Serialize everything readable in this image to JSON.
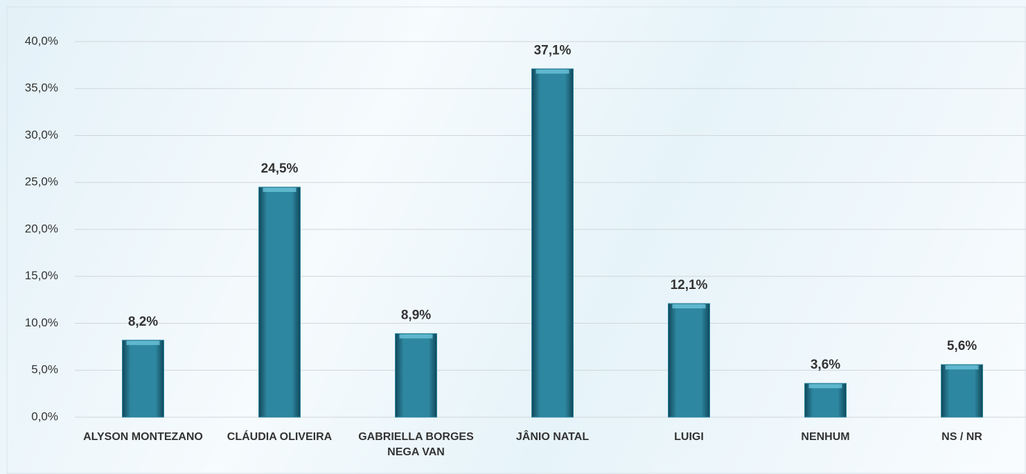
{
  "chart_data": {
    "type": "bar",
    "categories": [
      "ALYSON MONTEZANO",
      "CLÁUDIA OLIVEIRA",
      "GABRIELLA BORGES NEGA VAN",
      "JÂNIO NATAL",
      "LUIGI",
      "NENHUM",
      "NS / NR"
    ],
    "values": [
      8.2,
      24.5,
      8.9,
      37.1,
      12.1,
      3.6,
      5.6
    ],
    "value_labels": [
      "8,2%",
      "24,5%",
      "8,9%",
      "37,1%",
      "12,1%",
      "3,6%",
      "5,6%"
    ],
    "color": "#2e87a0",
    "ylim": [
      0,
      40
    ],
    "yticks": [
      {
        "value": 0,
        "label": "0,0%"
      },
      {
        "value": 5,
        "label": "5,0%"
      },
      {
        "value": 10,
        "label": "10,0%"
      },
      {
        "value": 15,
        "label": "15,0%"
      },
      {
        "value": 20,
        "label": "20,0%"
      },
      {
        "value": 25,
        "label": "25,0%"
      },
      {
        "value": 30,
        "label": "30,0%"
      },
      {
        "value": 35,
        "label": "35,0%"
      },
      {
        "value": 40,
        "label": "40,0%"
      }
    ],
    "grid": true
  }
}
